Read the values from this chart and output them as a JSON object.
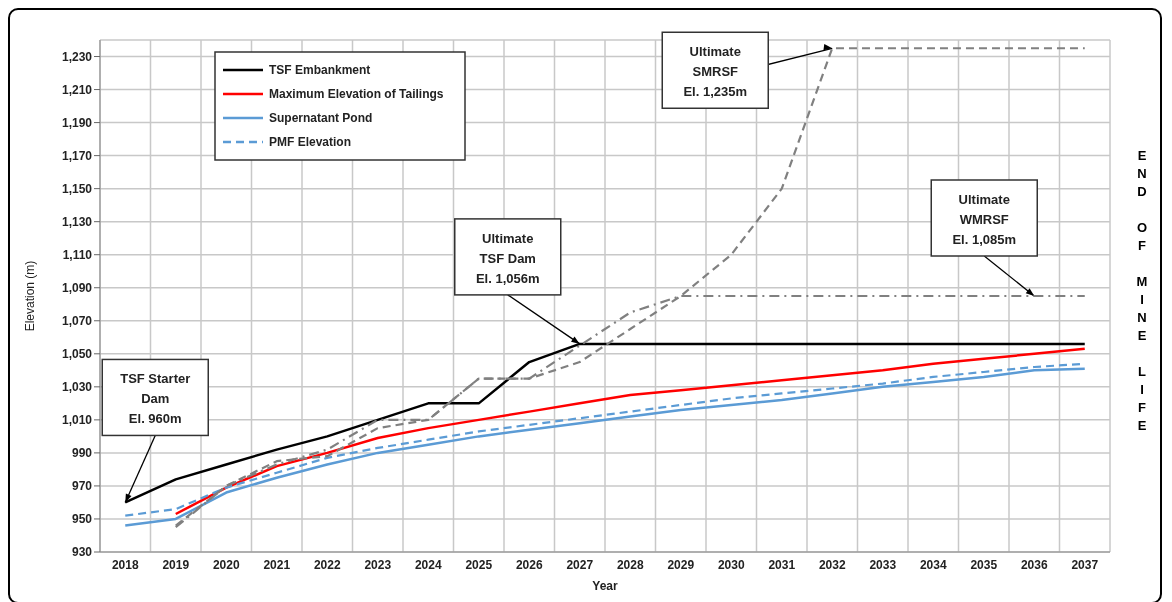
{
  "chart_data": {
    "type": "line",
    "xlabel": "Year",
    "ylabel": "Elevation (m)",
    "categories": [
      "2018",
      "2019",
      "2020",
      "2021",
      "2022",
      "2023",
      "2024",
      "2025",
      "2026",
      "2027",
      "2028",
      "2029",
      "2030",
      "2031",
      "2032",
      "2033",
      "2034",
      "2035",
      "2036",
      "2037"
    ],
    "series": [
      {
        "name": "TSF Embankment",
        "color": "#000000",
        "line_style": "solid",
        "values": [
          960,
          974,
          983,
          992,
          1000,
          1010,
          1020,
          1020,
          1045,
          1056,
          1056,
          1056,
          1056,
          1056,
          1056,
          1056,
          1056,
          1056,
          1056,
          1056
        ]
      },
      {
        "name": "Maximum Elevation of Tailings",
        "color": "#ff0000",
        "line_style": "solid",
        "values": [
          null,
          953,
          969,
          982,
          990,
          999,
          1005,
          1010,
          1015,
          1020,
          1025,
          1028,
          1031,
          1034,
          1037,
          1040,
          1044,
          1047,
          1050,
          1053
        ]
      },
      {
        "name": "Supernatant Pond",
        "color": "#5b9bd5",
        "line_style": "solid",
        "values": [
          946,
          950,
          966,
          975,
          983,
          990,
          995,
          1000,
          1004,
          1008,
          1012,
          1016,
          1019,
          1022,
          1026,
          1030,
          1033,
          1036,
          1040,
          1041
        ]
      },
      {
        "name": "PMF Elevation",
        "color": "#5b9bd5",
        "line_style": "dashed",
        "values": [
          952,
          956,
          969,
          978,
          987,
          993,
          998,
          1003,
          1007,
          1011,
          1015,
          1019,
          1023,
          1026,
          1029,
          1032,
          1036,
          1039,
          1042,
          1044
        ]
      },
      {
        "color": "#808080",
        "line_style": "dashed",
        "values": [
          null,
          946,
          970,
          985,
          988,
          1005,
          1010,
          1035,
          1035,
          1045,
          1065,
          1085,
          1110,
          1150,
          1235,
          1235,
          1235,
          1235,
          1235,
          1235
        ]
      },
      {
        "color": "#808080",
        "line_style": "dashdot",
        "values": [
          null,
          945,
          970,
          983,
          992,
          1010,
          1010,
          1035,
          1035,
          1055,
          1075,
          1085,
          1085,
          1085,
          1085,
          1085,
          1085,
          1085,
          1085,
          1085
        ]
      }
    ],
    "ylim": [
      930,
      1240
    ],
    "yticks": [
      930,
      950,
      970,
      990,
      {
        "value": 1010,
        "label": "1,010"
      },
      {
        "value": 1030,
        "label": "1,030"
      },
      {
        "value": 1050,
        "label": "1,050"
      },
      {
        "value": 1070,
        "label": "1,070"
      },
      {
        "value": 1090,
        "label": "1,090"
      },
      {
        "value": 1110,
        "label": "1,110"
      },
      {
        "value": 1130,
        "label": "1,130"
      },
      {
        "value": 1150,
        "label": "1,150"
      },
      {
        "value": 1170,
        "label": "1,170"
      },
      {
        "value": 1190,
        "label": "1,190"
      },
      {
        "value": 1210,
        "label": "1,210"
      },
      {
        "value": 1230,
        "label": "1,230"
      }
    ],
    "grid": true,
    "legend": "top left",
    "annotations": [
      {
        "text": "TSF Starter\nDam\nEl. 960m",
        "x": "2018",
        "y": 960
      },
      {
        "text": "Ultimate\nTSF Dam\nEl. 1,056m",
        "x": "2027",
        "y": 1056
      },
      {
        "text": "Ultimate\nSMRSF\nEl. 1,235m",
        "x": "2032",
        "y": 1235
      },
      {
        "text": "Ultimate\nWMRSF\nEl. 1,085m",
        "x": "2036",
        "y": 1085
      },
      "END OF MINE LIFE"
    ]
  }
}
